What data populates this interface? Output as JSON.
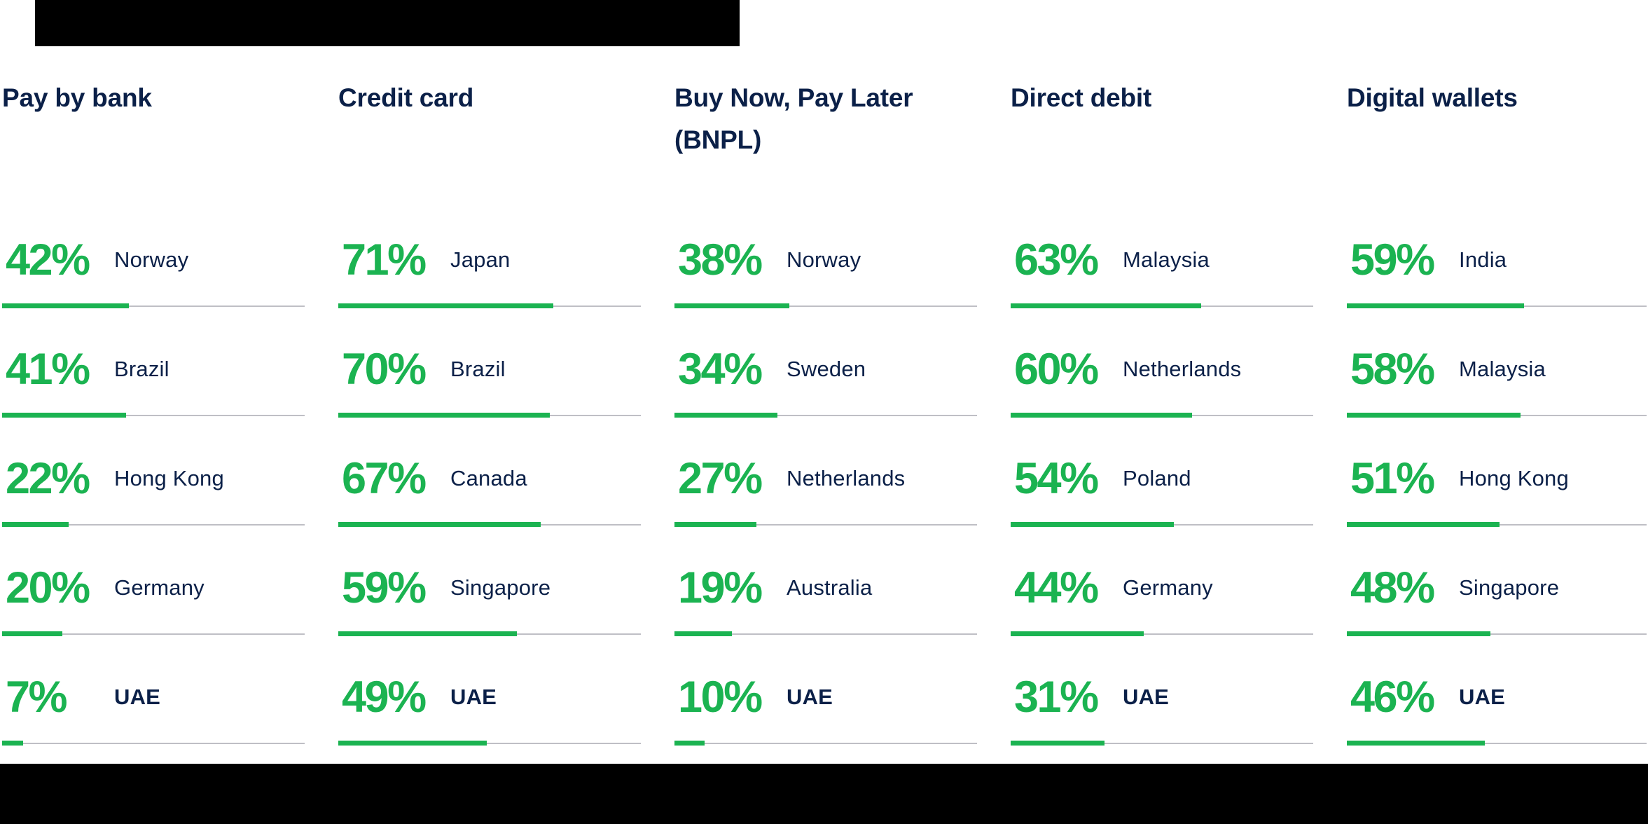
{
  "colors": {
    "green": "#1BB351",
    "navy": "#0B2048",
    "track_gray": "#BFBFC5",
    "decor_black": "#000000",
    "background": "#FFFFFF"
  },
  "chart_data": {
    "type": "bar",
    "unit": "%",
    "orientation": "horizontal",
    "value_range": [
      0,
      100
    ],
    "highlighted_country": "UAE",
    "groups": [
      {
        "label": "Pay by bank",
        "rows": [
          {
            "country": "Norway",
            "value": 42,
            "label": "42%"
          },
          {
            "country": "Brazil",
            "value": 41,
            "label": "41%"
          },
          {
            "country": "Hong Kong",
            "value": 22,
            "label": "22%"
          },
          {
            "country": "Germany",
            "value": 20,
            "label": "20%"
          },
          {
            "country": "UAE",
            "value": 7,
            "label": "7%"
          }
        ]
      },
      {
        "label": "Credit card",
        "rows": [
          {
            "country": "Japan",
            "value": 71,
            "label": "71%"
          },
          {
            "country": "Brazil",
            "value": 70,
            "label": "70%"
          },
          {
            "country": "Canada",
            "value": 67,
            "label": "67%"
          },
          {
            "country": "Singapore",
            "value": 59,
            "label": "59%"
          },
          {
            "country": "UAE",
            "value": 49,
            "label": "49%"
          }
        ]
      },
      {
        "label": "Buy Now, Pay Later (BNPL)",
        "rows": [
          {
            "country": "Norway",
            "value": 38,
            "label": "38%"
          },
          {
            "country": "Sweden",
            "value": 34,
            "label": "34%"
          },
          {
            "country": "Netherlands",
            "value": 27,
            "label": "27%"
          },
          {
            "country": "Australia",
            "value": 19,
            "label": "19%"
          },
          {
            "country": "UAE",
            "value": 10,
            "label": "10%"
          }
        ]
      },
      {
        "label": "Direct debit",
        "rows": [
          {
            "country": "Malaysia",
            "value": 63,
            "label": "63%"
          },
          {
            "country": "Netherlands",
            "value": 60,
            "label": "60%"
          },
          {
            "country": "Poland",
            "value": 54,
            "label": "54%"
          },
          {
            "country": "Germany",
            "value": 44,
            "label": "44%"
          },
          {
            "country": "UAE",
            "value": 31,
            "label": "31%"
          }
        ]
      },
      {
        "label": "Digital wallets",
        "rows": [
          {
            "country": "India",
            "value": 59,
            "label": "59%"
          },
          {
            "country": "Malaysia",
            "value": 58,
            "label": "58%"
          },
          {
            "country": "Hong Kong",
            "value": 51,
            "label": "51%"
          },
          {
            "country": "Singapore",
            "value": 48,
            "label": "48%"
          },
          {
            "country": "UAE",
            "value": 46,
            "label": "46%"
          }
        ]
      }
    ]
  }
}
